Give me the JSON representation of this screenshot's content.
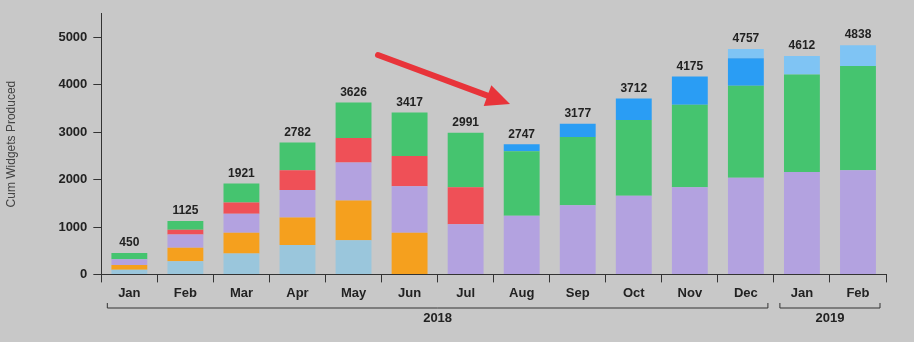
{
  "chart_data": {
    "type": "bar",
    "stacked": true,
    "grid": false,
    "y_label": "Cum Widgets Produced",
    "categories": [
      "Jan",
      "Feb",
      "Mar",
      "Apr",
      "May",
      "Jun",
      "Jul",
      "Aug",
      "Sep",
      "Oct",
      "Nov",
      "Dec",
      "Jan",
      "Feb"
    ],
    "year_labels": [
      "2018",
      "2018",
      "2018",
      "2018",
      "2018",
      "2018",
      "2018",
      "2018",
      "2018",
      "2018",
      "2018",
      "2018",
      "2019",
      "2019"
    ],
    "series": [
      {
        "color": "#9ac6dc",
        "values": [
          100,
          280,
          440,
          620,
          720,
          null,
          null,
          null,
          null,
          null,
          null,
          null,
          null,
          null
        ]
      },
      {
        "color": "#f5a01e",
        "values": [
          100,
          280,
          440,
          580,
          840,
          880,
          null,
          null,
          null,
          null,
          null,
          null,
          null,
          null
        ]
      },
      {
        "color": "#b3a2e0",
        "values": [
          120,
          280,
          400,
          580,
          800,
          980,
          1060,
          1240,
          1460,
          1660,
          1840,
          2040,
          2160,
          2200
        ]
      },
      {
        "color": "#ef5057",
        "values": [
          null,
          100,
          240,
          420,
          520,
          640,
          780,
          null,
          null,
          null,
          null,
          null,
          null,
          null
        ]
      },
      {
        "color": "#45c46f",
        "values": [
          130,
          185,
          401,
          582,
          746,
          917,
          1151,
          1360,
          1440,
          1600,
          1740,
          1940,
          2060,
          2200
        ]
      },
      {
        "color": "#2a9df4",
        "values": [
          null,
          null,
          null,
          null,
          null,
          null,
          null,
          147,
          277,
          452,
          595,
          580,
          null,
          null
        ]
      },
      {
        "color": "#7fc4f4",
        "values": [
          null,
          null,
          null,
          null,
          null,
          null,
          null,
          null,
          null,
          null,
          null,
          197,
          392,
          438
        ]
      }
    ],
    "totals": [
      450,
      1125,
      1921,
      2782,
      3626,
      3417,
      2991,
      2747,
      3177,
      3712,
      4175,
      4757,
      4612,
      4838
    ],
    "ylim": [
      0,
      5500
    ],
    "yticks": [
      0,
      1000,
      2000,
      3000,
      4000,
      5000
    ]
  }
}
